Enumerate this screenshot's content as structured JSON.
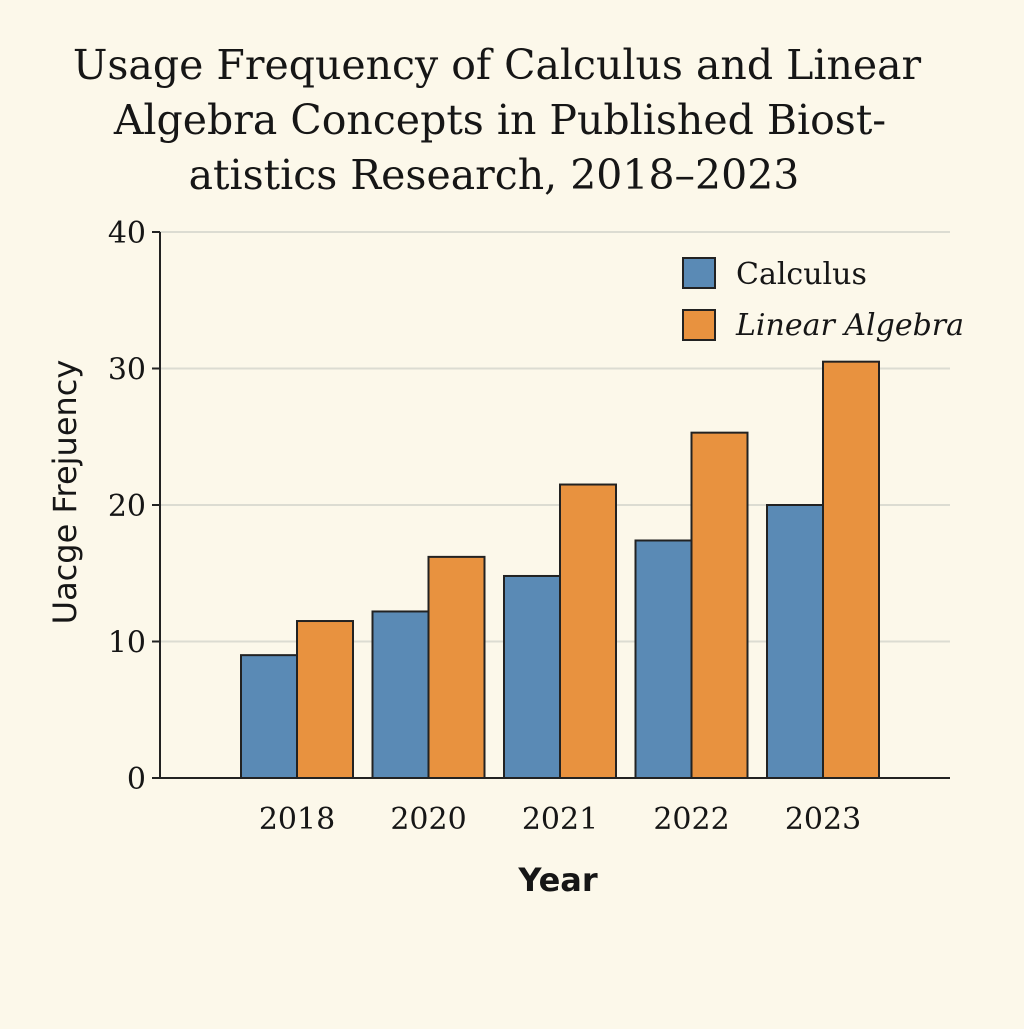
{
  "chart_data": {
    "type": "bar",
    "title_lines": [
      "Usage Frequency of Calculus and Linear",
      "Algebra Concepts in Published Biost-",
      "atistics Research, 2018–2023"
    ],
    "xlabel": "Year",
    "ylabel": "Uacge Frejuency",
    "categories": [
      "2018",
      "2020",
      "2021",
      "2022",
      "2023"
    ],
    "series": [
      {
        "name": "Calculus",
        "color": "#5a8ab5",
        "values": [
          9,
          12.2,
          14.8,
          17.4,
          20
        ]
      },
      {
        "name": "Linear Algebra",
        "color": "#e8923f",
        "values": [
          11.5,
          16.2,
          21.5,
          25.3,
          30.5
        ]
      }
    ],
    "ylim": [
      0,
      40
    ],
    "yticks": [
      "0",
      "10",
      "20",
      "30",
      "40"
    ],
    "grid": true,
    "legend_position": "top-right"
  }
}
